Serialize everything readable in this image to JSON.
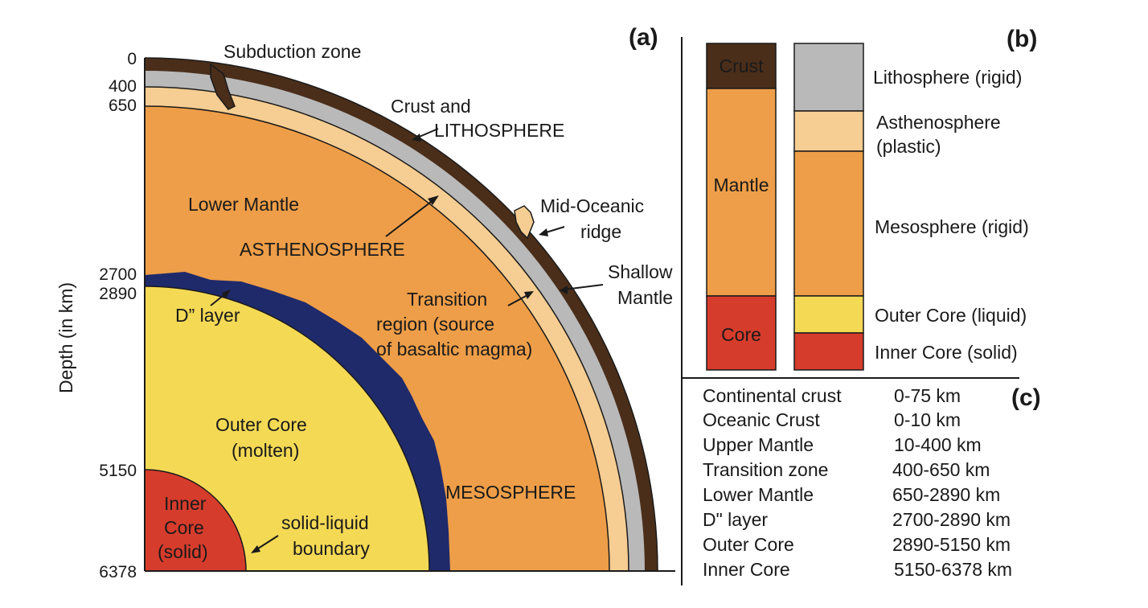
{
  "colors": {
    "crust": "#4a2e1a",
    "lithosphere": "#b9b9b9",
    "asthenosphere": "#f6cd92",
    "mantle": "#ee9e48",
    "d_layer": "#1f2a6b",
    "outer_core": "#f4d955",
    "inner_core": "#d63c2c"
  },
  "panel_a": {
    "tag": "(a)",
    "axis_label": "Depth (in km)",
    "depth_ticks": [
      "0",
      "400",
      "650",
      "2700",
      "2890",
      "5150",
      "6378"
    ],
    "labels": {
      "subduction": "Subduction zone",
      "crust_line1": "Crust and",
      "crust_line2": "LITHOSPHERE",
      "lower_mantle": "Lower Mantle",
      "asthenosphere": "ASTHENOSPHERE",
      "mor_line1": "Mid-Oceanic",
      "mor_line2": "ridge",
      "shallow_line1": "Shallow",
      "shallow_line2": "Mantle",
      "transition_line1": "Transition",
      "transition_line2": "region (source",
      "transition_line3": "of basaltic magma)",
      "d_layer": "D” layer",
      "outer_line1": "Outer Core",
      "outer_line2": "(molten)",
      "mesosphere": "MESOSPHERE",
      "inner_line1": "Inner",
      "inner_line2": "Core",
      "inner_line3": "(solid)",
      "boundary_line1": "solid-liquid",
      "boundary_line2": "boundary"
    }
  },
  "panel_b": {
    "tag": "(b)",
    "left_column": [
      "Crust",
      "Mantle",
      "Core"
    ],
    "right_column": {
      "lithosphere": "Lithosphere (rigid)",
      "asth_line1": "Asthenosphere",
      "asth_line2": "(plastic)",
      "mesosphere": "Mesosphere (rigid)",
      "outer_core": "Outer Core (liquid)",
      "inner_core": "Inner Core (solid)"
    }
  },
  "panel_c": {
    "tag": "(c)",
    "rows": [
      {
        "layer": "Continental crust",
        "range": "0-75 km"
      },
      {
        "layer": "Oceanic Crust",
        "range": "0-10 km"
      },
      {
        "layer": "Upper Mantle",
        "range": "10-400 km"
      },
      {
        "layer": "Transition zone",
        "range": "400-650 km"
      },
      {
        "layer": "Lower Mantle",
        "range": "650-2890 km"
      },
      {
        "layer": "D\" layer",
        "range": "2700-2890 km"
      },
      {
        "layer": "Outer Core",
        "range": "2890-5150 km"
      },
      {
        "layer": "Inner Core",
        "range": "5150-6378 km"
      }
    ]
  }
}
